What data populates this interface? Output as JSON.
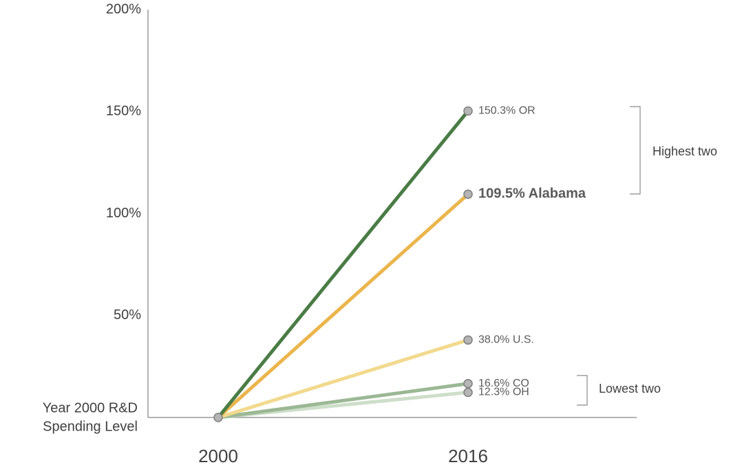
{
  "chart_data": {
    "type": "line",
    "title": "",
    "xlabel": "",
    "ylabel": "",
    "x": [
      "2000",
      "2016"
    ],
    "ylim": [
      0,
      200
    ],
    "y_tick_labels": [
      "200%",
      "150%",
      "100%",
      "50%"
    ],
    "y_tick_values": [
      200,
      150,
      100,
      50
    ],
    "baseline_label_lines": [
      "Year 2000 R&D",
      "Spending Level"
    ],
    "series": [
      {
        "name": "OR",
        "values": [
          0,
          150.3
        ],
        "label": "150.3% OR",
        "color": "#4a7c45",
        "opacity": 1,
        "emphasis": false
      },
      {
        "name": "Alabama",
        "values": [
          0,
          109.5
        ],
        "label": "109.5% Alabama",
        "color": "#ebb54c",
        "opacity": 1,
        "emphasis": true
      },
      {
        "name": "U.S.",
        "values": [
          0,
          38.0
        ],
        "label": "38.0% U.S.",
        "color": "#f2d98d",
        "opacity": 1,
        "emphasis": false
      },
      {
        "name": "CO",
        "values": [
          0,
          16.6
        ],
        "label": "16.6% CO",
        "color": "#9bb894",
        "opacity": 1,
        "emphasis": false
      },
      {
        "name": "OH",
        "values": [
          0,
          12.3
        ],
        "label": "12.3% OH",
        "color": "#cddec9",
        "opacity": 1,
        "emphasis": false
      }
    ],
    "annotations": [
      {
        "text": "Highest two",
        "series_range": [
          "OR",
          "Alabama"
        ]
      },
      {
        "text": "Lowest two",
        "series_range": [
          "CO",
          "OH"
        ]
      }
    ],
    "grid": false,
    "legend": "none"
  }
}
